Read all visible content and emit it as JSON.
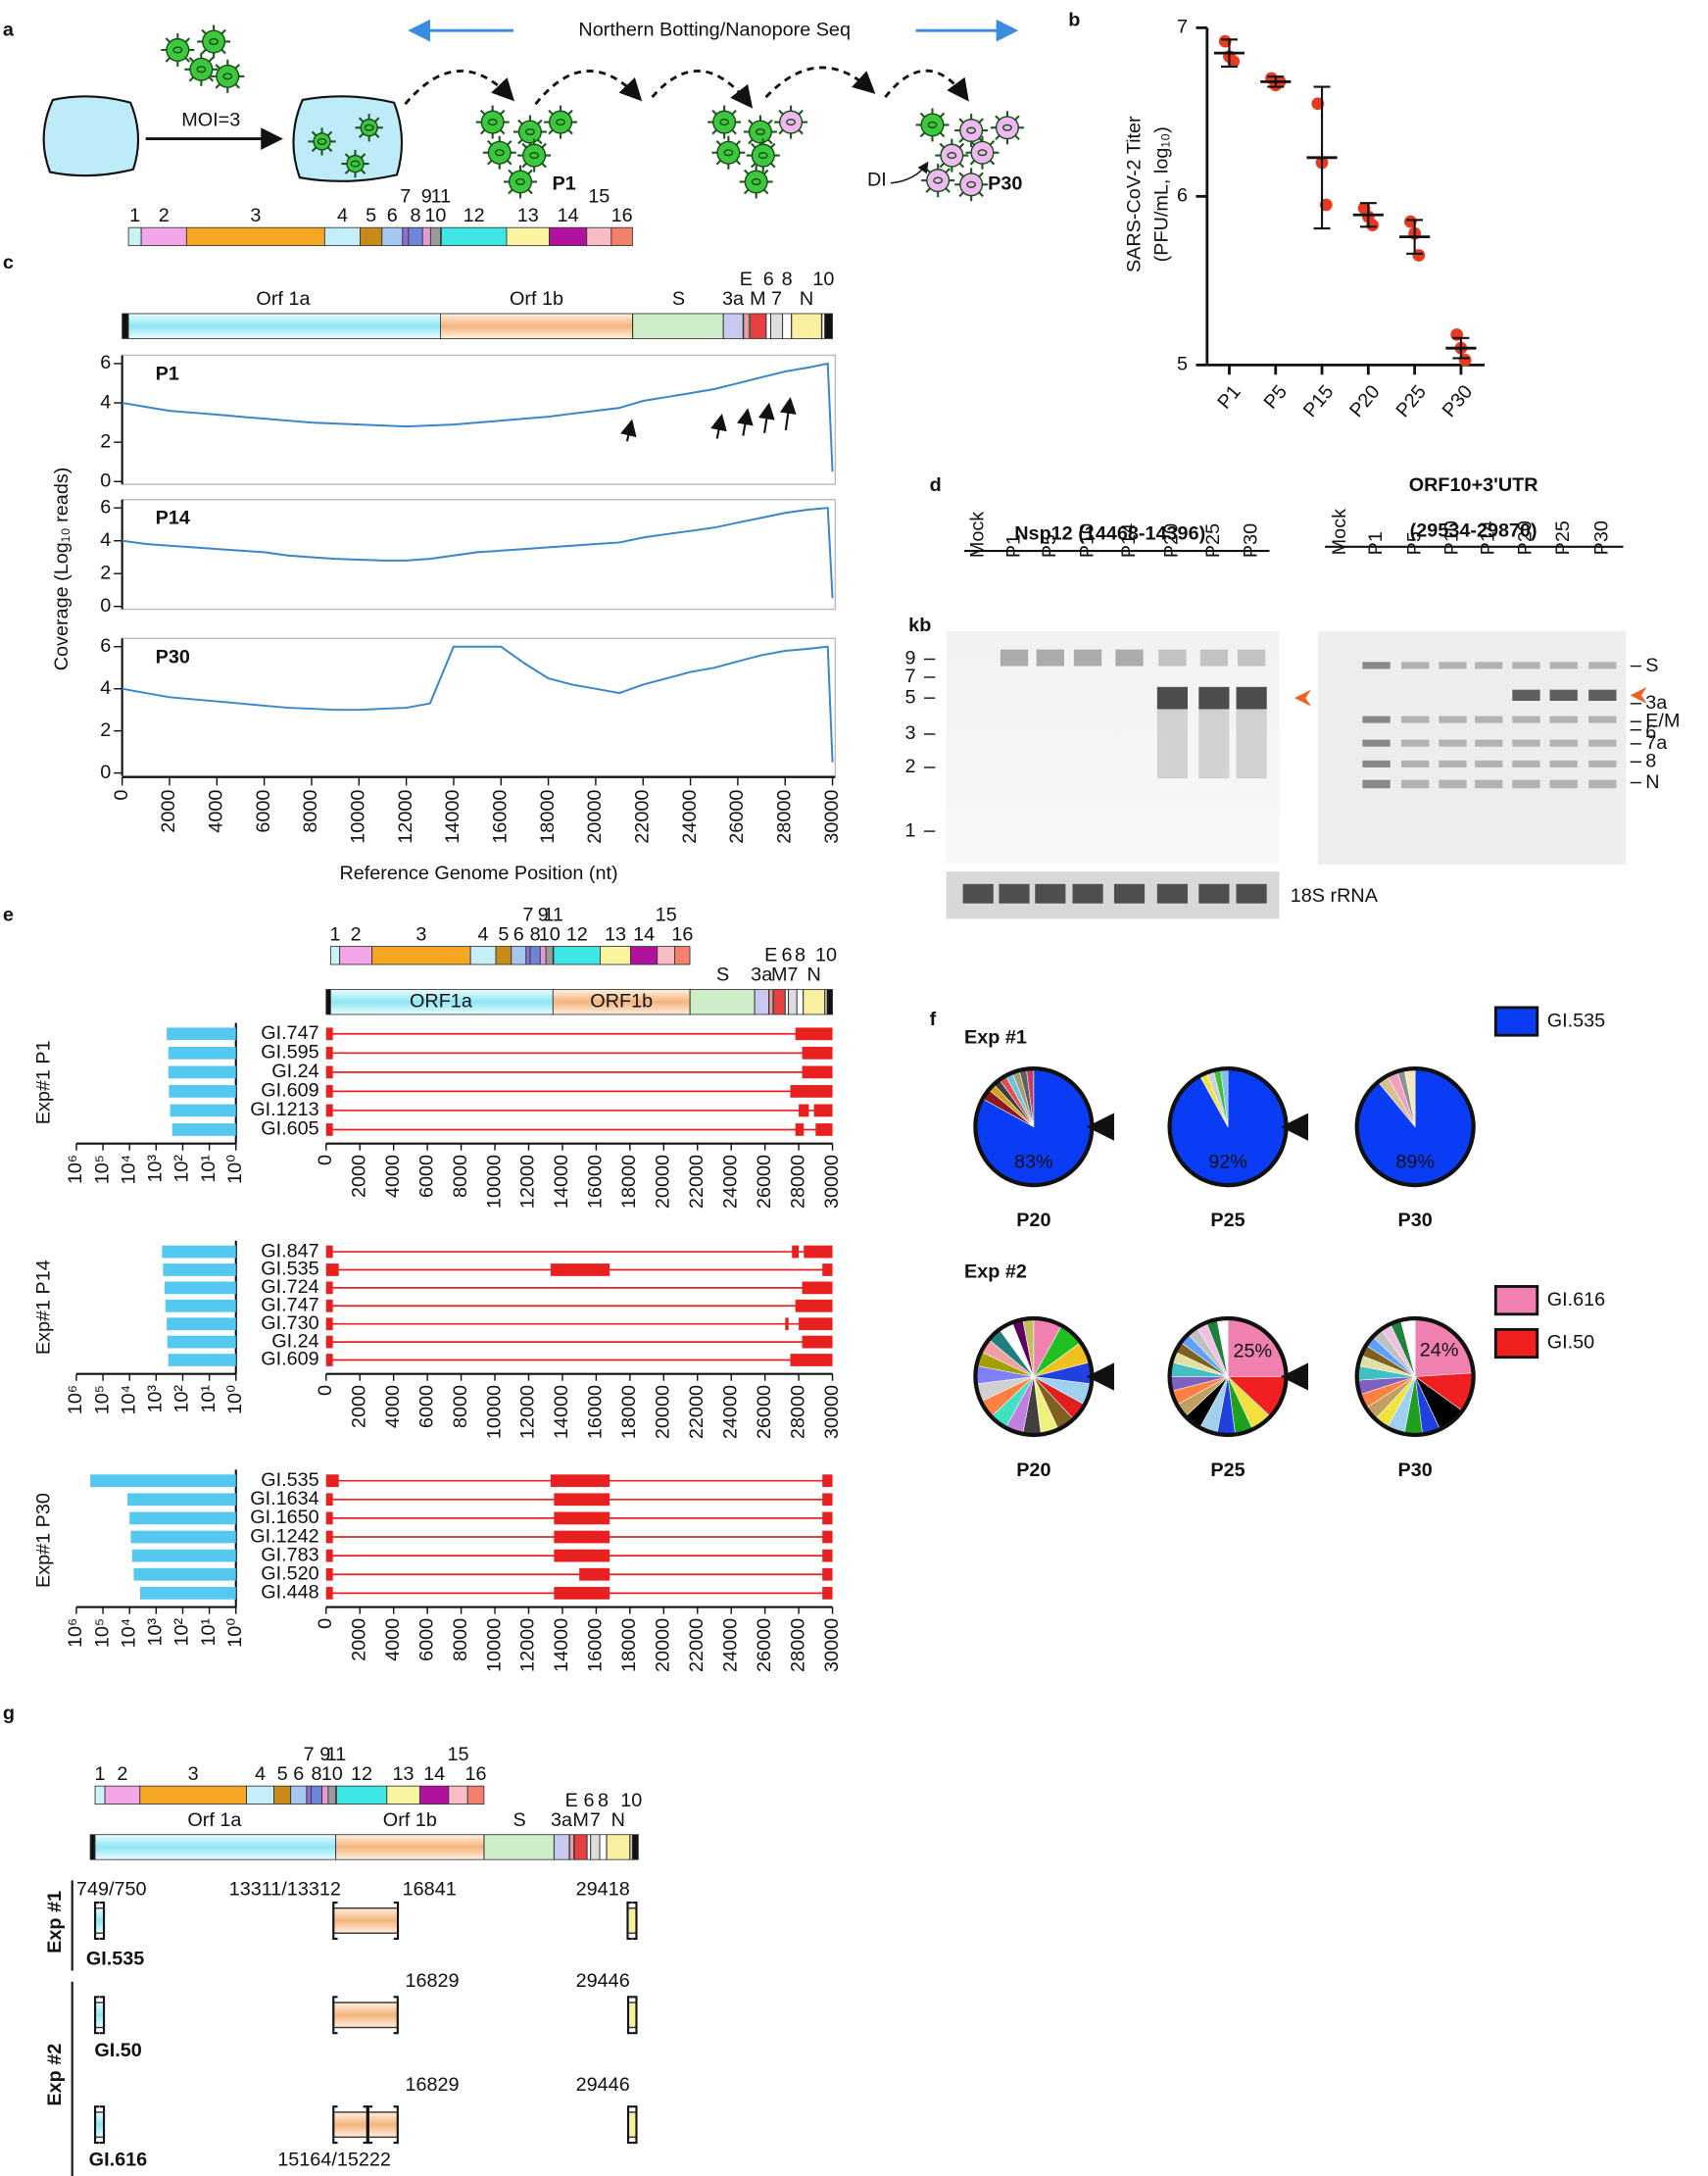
{
  "panel_letters": [
    "a",
    "b",
    "c",
    "d",
    "e",
    "f",
    "g"
  ],
  "panel_a": {
    "banner": "Northern Botting/Nanopore Seq",
    "moi": "MOI=3",
    "p1": "P1",
    "p30": "P30",
    "di": "DI"
  },
  "genome_map": {
    "nsps": [
      "1",
      "2",
      "3",
      "4",
      "5",
      "6",
      "7",
      "8",
      "9",
      "10",
      "11",
      "12",
      "13",
      "14",
      "15",
      "16"
    ],
    "orfs": [
      "Orf 1a",
      "Orf 1b",
      "S",
      "3a",
      "E",
      "M",
      "6",
      "7",
      "8",
      "N",
      "10"
    ],
    "orfs_e": [
      "ORF1a",
      "ORF1b"
    ]
  },
  "panel_d": {
    "left_title": "Nsp12 (14468-14396)",
    "right_title": [
      "ORF10+3'UTR",
      "(29534-29870)"
    ],
    "lanes": [
      "Mock",
      "P1",
      "P5",
      "P10",
      "P14",
      "P20",
      "P25",
      "P30"
    ],
    "kb": "kb",
    "markers": [
      9,
      7,
      5,
      3,
      2,
      1
    ],
    "bands": [
      "S",
      "3a",
      "E/M",
      "6",
      "7a",
      "8",
      "N"
    ],
    "loading": "18S rRNA"
  },
  "panel_g": {
    "exp1": "Exp #1",
    "exp2": "Exp #2",
    "rows": [
      {
        "name": "GI.535",
        "labels": [
          "749/750",
          "13311/13312",
          "16841",
          "29418"
        ]
      },
      {
        "name": "GI.50",
        "labels": [
          "16829",
          "29446"
        ]
      },
      {
        "name": "GI.616",
        "labels": [
          "16829",
          "29446",
          "15164/15222"
        ]
      }
    ]
  },
  "chart_data": [
    {
      "type": "scatter",
      "ylabel": [
        "SARS-CoV-2 Titer",
        "(PFU/mL, log₁₀)"
      ],
      "categories": [
        "P1",
        "P5",
        "P15",
        "P20",
        "P25",
        "P30"
      ],
      "values": [
        6.85,
        6.68,
        6.23,
        5.89,
        5.76,
        5.1
      ],
      "errors": [
        0.08,
        0.03,
        0.42,
        0.07,
        0.1,
        0.06
      ],
      "points": [
        [
          6.92,
          6.83,
          6.8
        ],
        [
          6.7,
          6.66,
          6.68
        ],
        [
          6.55,
          6.2,
          5.95
        ],
        [
          5.93,
          5.88,
          5.83
        ],
        [
          5.85,
          5.78,
          5.65
        ],
        [
          5.18,
          5.1,
          5.03
        ]
      ],
      "color": "#e83a20",
      "ylim": [
        5,
        7
      ],
      "yticks": [
        5,
        6,
        7
      ]
    },
    {
      "type": "line",
      "ylabel": "Coverage (Log₁₀ reads)",
      "xlabel": "Reference Genome Position (nt)",
      "color": "#3a86c8",
      "x": [
        0,
        1000,
        2000,
        3000,
        4000,
        5000,
        6000,
        7000,
        8000,
        9000,
        10000,
        11000,
        12000,
        13000,
        14000,
        15000,
        16000,
        17000,
        18000,
        19000,
        20000,
        21000,
        22000,
        23000,
        24000,
        25000,
        26000,
        27000,
        28000,
        29000,
        29800,
        30000
      ],
      "series": [
        {
          "name": "P1",
          "values": [
            4.0,
            3.8,
            3.6,
            3.5,
            3.4,
            3.3,
            3.2,
            3.1,
            3.0,
            2.95,
            2.9,
            2.85,
            2.8,
            2.85,
            2.9,
            3.0,
            3.1,
            3.2,
            3.3,
            3.45,
            3.6,
            3.75,
            4.1,
            4.3,
            4.5,
            4.7,
            5.0,
            5.3,
            5.6,
            5.8,
            6.0,
            0.5
          ]
        },
        {
          "name": "P14",
          "values": [
            4.0,
            3.8,
            3.7,
            3.6,
            3.5,
            3.4,
            3.3,
            3.1,
            3.0,
            2.9,
            2.85,
            2.8,
            2.8,
            2.9,
            3.1,
            3.3,
            3.4,
            3.5,
            3.6,
            3.7,
            3.8,
            3.9,
            4.2,
            4.4,
            4.6,
            4.8,
            5.1,
            5.4,
            5.7,
            5.9,
            6.0,
            0.5
          ]
        },
        {
          "name": "P30",
          "values": [
            4.0,
            3.8,
            3.6,
            3.5,
            3.4,
            3.3,
            3.2,
            3.1,
            3.05,
            3.0,
            3.0,
            3.05,
            3.1,
            3.3,
            6.0,
            6.0,
            6.0,
            5.2,
            4.5,
            4.2,
            4.0,
            3.8,
            4.2,
            4.5,
            4.8,
            5.0,
            5.3,
            5.6,
            5.8,
            5.9,
            6.0,
            0.5
          ]
        }
      ],
      "xlim": [
        0,
        30000
      ],
      "xticks": [
        0,
        2000,
        4000,
        6000,
        8000,
        10000,
        12000,
        14000,
        16000,
        18000,
        20000,
        22000,
        24000,
        26000,
        28000,
        30000
      ],
      "ylim": [
        0,
        6
      ],
      "yticks": [
        0,
        2,
        4,
        6
      ]
    },
    {
      "type": "hbar_log",
      "title": "Exp#1 P1",
      "categories": [
        "GI.747",
        "GI.595",
        "GI.24",
        "GI.609",
        "GI.1213",
        "GI.605"
      ],
      "values": [
        400,
        350,
        350,
        330,
        300,
        250
      ],
      "segments": [
        [
          [
            0,
            400
          ],
          [
            27800,
            30000
          ]
        ],
        [
          [
            0,
            400
          ],
          [
            28200,
            30000
          ]
        ],
        [
          [
            0,
            400
          ],
          [
            28200,
            30000
          ]
        ],
        [
          [
            0,
            400
          ],
          [
            27500,
            30000
          ]
        ],
        [
          [
            0,
            400
          ],
          [
            28000,
            28600
          ],
          [
            28900,
            30000
          ]
        ],
        [
          [
            0,
            400
          ],
          [
            27800,
            28300
          ],
          [
            29000,
            30000
          ]
        ]
      ],
      "bar_color": "#55c8f0",
      "segment_color": "#e82020",
      "log": true,
      "xlim": [
        1000000,
        1
      ],
      "xticks": [
        {
          "value": 1000000,
          "label": "10⁶"
        },
        {
          "value": 100000,
          "label": "10⁵"
        },
        {
          "value": 10000,
          "label": "10⁴"
        },
        {
          "value": 1000,
          "label": "10³"
        },
        {
          "value": 100,
          "label": "10²"
        },
        {
          "value": 10,
          "label": "10¹"
        },
        {
          "value": 1,
          "label": "10⁰"
        }
      ],
      "genome_xlim": [
        0,
        30000
      ],
      "genome_xticks": [
        0,
        2000,
        4000,
        6000,
        8000,
        10000,
        12000,
        14000,
        16000,
        18000,
        20000,
        22000,
        24000,
        26000,
        28000,
        30000
      ]
    },
    {
      "type": "hbar_log",
      "title": "Exp#1 P14",
      "categories": [
        "GI.847",
        "GI.535",
        "GI.724",
        "GI.747",
        "GI.730",
        "GI.24",
        "GI.609"
      ],
      "values": [
        600,
        550,
        480,
        450,
        400,
        380,
        350
      ],
      "segments": [
        [
          [
            0,
            400
          ],
          [
            27600,
            28000
          ],
          [
            28300,
            30000
          ]
        ],
        [
          [
            0,
            750
          ],
          [
            13300,
            16800
          ],
          [
            29400,
            30000
          ]
        ],
        [
          [
            0,
            400
          ],
          [
            28200,
            30000
          ]
        ],
        [
          [
            0,
            400
          ],
          [
            27800,
            30000
          ]
        ],
        [
          [
            0,
            400
          ],
          [
            27200,
            27400
          ],
          [
            28000,
            30000
          ]
        ],
        [
          [
            0,
            400
          ],
          [
            28200,
            30000
          ]
        ],
        [
          [
            0,
            400
          ],
          [
            27500,
            30000
          ]
        ]
      ],
      "bar_color": "#55c8f0",
      "segment_color": "#e82020",
      "log": true,
      "xlim": [
        1000000,
        1
      ],
      "xticks": [
        {
          "value": 1000000,
          "label": "10⁶"
        },
        {
          "value": 100000,
          "label": "10⁵"
        },
        {
          "value": 10000,
          "label": "10⁴"
        },
        {
          "value": 1000,
          "label": "10³"
        },
        {
          "value": 100,
          "label": "10²"
        },
        {
          "value": 10,
          "label": "10¹"
        },
        {
          "value": 1,
          "label": "10⁰"
        }
      ],
      "genome_xlim": [
        0,
        30000
      ],
      "genome_xticks": [
        0,
        2000,
        4000,
        6000,
        8000,
        10000,
        12000,
        14000,
        16000,
        18000,
        20000,
        22000,
        24000,
        26000,
        28000,
        30000
      ]
    },
    {
      "type": "hbar_log",
      "title": "Exp#1 P30",
      "categories": [
        "GI.535",
        "GI.1634",
        "GI.1650",
        "GI.1242",
        "GI.783",
        "GI.520",
        "GI.448"
      ],
      "values": [
        300000,
        12000,
        10000,
        9000,
        8000,
        7000,
        4000
      ],
      "segments": [
        [
          [
            0,
            750
          ],
          [
            13300,
            16800
          ],
          [
            29400,
            30000
          ]
        ],
        [
          [
            0,
            400
          ],
          [
            13500,
            16800
          ],
          [
            29400,
            30000
          ]
        ],
        [
          [
            0,
            400
          ],
          [
            13500,
            16800
          ],
          [
            29400,
            30000
          ]
        ],
        [
          [
            0,
            400
          ],
          [
            13500,
            16800
          ],
          [
            29400,
            30000
          ]
        ],
        [
          [
            0,
            400
          ],
          [
            13500,
            16800
          ],
          [
            29400,
            30000
          ]
        ],
        [
          [
            0,
            400
          ],
          [
            15000,
            16800
          ],
          [
            29400,
            30000
          ]
        ],
        [
          [
            0,
            400
          ],
          [
            13500,
            16800
          ],
          [
            29400,
            30000
          ]
        ]
      ],
      "bar_color": "#55c8f0",
      "segment_color": "#e82020",
      "log": true,
      "xlim": [
        1000000,
        1
      ],
      "xticks": [
        {
          "value": 1000000,
          "label": "10⁶"
        },
        {
          "value": 100000,
          "label": "10⁵"
        },
        {
          "value": 10000,
          "label": "10⁴"
        },
        {
          "value": 1000,
          "label": "10³"
        },
        {
          "value": 100,
          "label": "10²"
        },
        {
          "value": 10,
          "label": "10¹"
        },
        {
          "value": 1,
          "label": "10⁰"
        }
      ],
      "genome_xlim": [
        0,
        30000
      ],
      "genome_xticks": [
        0,
        2000,
        4000,
        6000,
        8000,
        10000,
        12000,
        14000,
        16000,
        18000,
        20000,
        22000,
        24000,
        26000,
        28000,
        30000
      ]
    },
    {
      "type": "pie",
      "groups": [
        {
          "title": "Exp #1",
          "pies": [
            {
              "name": "P20",
              "values": [
                83,
                3,
                2,
                2,
                2,
                2,
                2,
                2,
                2
              ],
              "colors": [
                "#0a3cf5",
                "#8b1a1a",
                "#d4a020",
                "#404040",
                "#e05050",
                "#70c0e0",
                "#a0a070",
                "#606060",
                "#c04060"
              ],
              "value_labels": [
                "83%",
                null,
                null,
                null,
                null,
                null,
                null,
                null,
                null
              ]
            },
            {
              "name": "P25",
              "values": [
                92,
                2,
                2,
                2,
                2
              ],
              "colors": [
                "#0a3cf5",
                "#f0e040",
                "#d0d0d0",
                "#40c040",
                "#80c0f0"
              ],
              "value_labels": [
                "92%",
                null,
                null,
                null,
                null
              ]
            },
            {
              "name": "P30",
              "values": [
                89,
                3,
                3,
                2,
                3
              ],
              "colors": [
                "#0a3cf5",
                "#d8c090",
                "#f0a0c0",
                "#909090",
                "#f0e8c0"
              ],
              "value_labels": [
                "89%",
                null,
                null,
                null,
                null
              ]
            }
          ]
        },
        {
          "title": "Exp #2",
          "pies": [
            {
              "name": "P20",
              "values": [
                8,
                7,
                6,
                6,
                6,
                5,
                5,
                5,
                5,
                5,
                5,
                5,
                5,
                5,
                4,
                4,
                4,
                4,
                3,
                3
              ],
              "colors": [
                "#f080b0",
                "#20c020",
                "#f0c020",
                "#2040e0",
                "#a0d0f0",
                "#e02020",
                "#806020",
                "#f0f080",
                "#404040",
                "#c080e0",
                "#40e0c0",
                "#ff8040",
                "#d0d0d0",
                "#8080ff",
                "#a0a000",
                "#f0a0a0",
                "#208080",
                "#ffffff",
                "#600060",
                "#c0c060"
              ]
            },
            {
              "name": "P25",
              "values": [
                25,
                12,
                6,
                5,
                5,
                5,
                5,
                4,
                4,
                4,
                4,
                3,
                3,
                3,
                3,
                3,
                3,
                3
              ],
              "colors": [
                "#f080b0",
                "#f02020",
                "#f0e040",
                "#20a020",
                "#2040e0",
                "#a0d0f0",
                "#000000",
                "#c0a060",
                "#ff8040",
                "#8060c0",
                "#40c0c0",
                "#e0e0a0",
                "#806020",
                "#60a0ff",
                "#c0c0c0",
                "#f0c0e0",
                "#208040",
                "#ffffff"
              ],
              "value_labels": [
                "25%",
                null,
                null,
                null,
                null,
                null,
                null,
                null,
                null,
                null,
                null,
                null,
                null,
                null,
                null,
                null,
                null,
                null
              ]
            },
            {
              "name": "P30",
              "values": [
                24,
                11,
                8,
                5,
                5,
                5,
                4,
                4,
                4,
                4,
                4,
                3,
                3,
                3,
                3,
                3,
                3,
                4
              ],
              "colors": [
                "#f080b0",
                "#f02020",
                "#000000",
                "#2040e0",
                "#20a020",
                "#a0d0f0",
                "#f0e040",
                "#c0a060",
                "#ff8040",
                "#8060c0",
                "#40c0c0",
                "#e0e0a0",
                "#806020",
                "#60a0ff",
                "#c0c0c0",
                "#f0c0e0",
                "#208040",
                "#ffffff"
              ],
              "value_labels": [
                "24%",
                null,
                null,
                null,
                null,
                null,
                null,
                null,
                null,
                null,
                null,
                null,
                null,
                null,
                null,
                null,
                null,
                null
              ]
            }
          ]
        }
      ],
      "legend": [
        {
          "name": "GI.535",
          "color": "#0a3cf5"
        },
        {
          "name": "GI.616",
          "color": "#f080b0"
        },
        {
          "name": "GI.50",
          "color": "#f02020"
        }
      ]
    }
  ]
}
